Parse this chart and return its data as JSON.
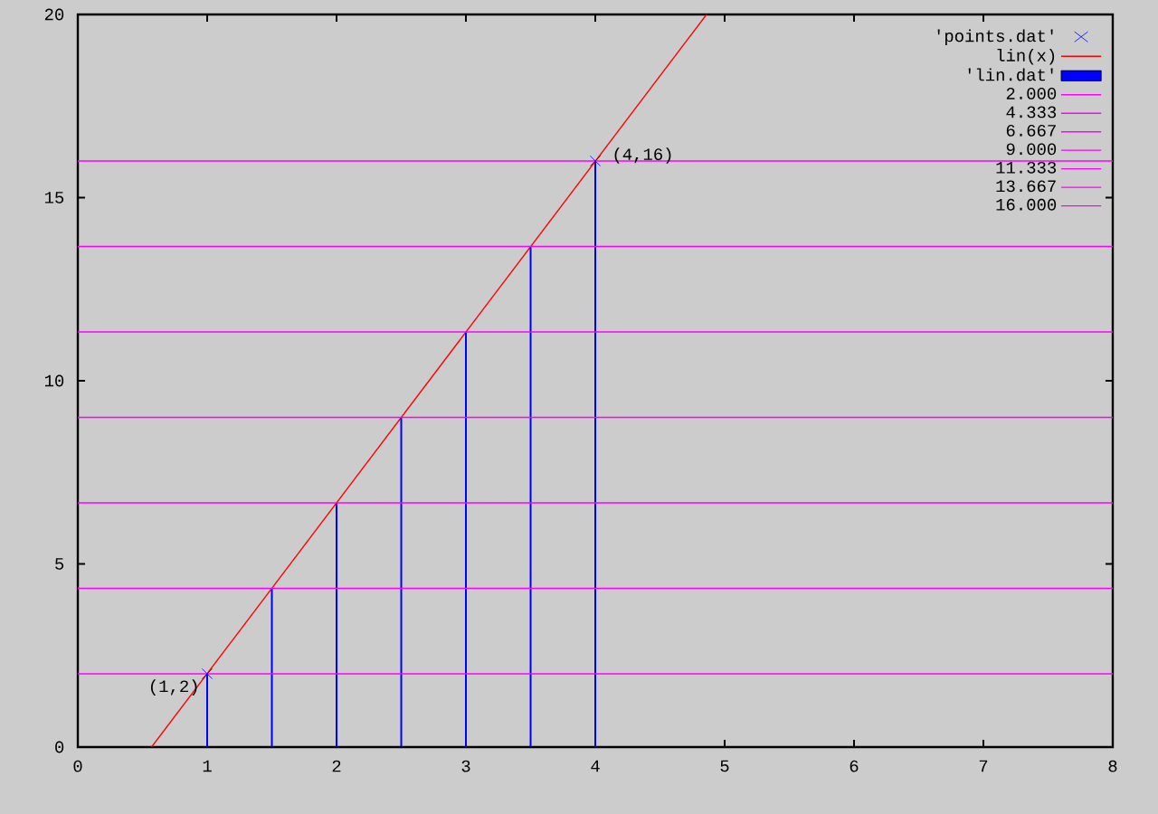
{
  "chart_data": {
    "type": "line",
    "xlim": [
      0,
      8
    ],
    "ylim": [
      0,
      20
    ],
    "xticks": [
      0,
      1,
      2,
      3,
      4,
      5,
      6,
      7,
      8
    ],
    "yticks": [
      0,
      5,
      10,
      15,
      20
    ],
    "legend": "top right",
    "grid": false,
    "series": [
      {
        "name": "'points.dat'",
        "type": "scatter",
        "marker": "cross",
        "color": "#0000ff",
        "x": [
          1,
          4
        ],
        "values": [
          2,
          16
        ]
      },
      {
        "name": "lin(x)",
        "color": "#ff0000",
        "x": [
          0.57,
          4.86
        ],
        "values": [
          0,
          20
        ]
      },
      {
        "name": "'lin.dat'",
        "type": "bar",
        "color": "#0000ff",
        "x": [
          1,
          1.5,
          2,
          2.5,
          3,
          3.5,
          4
        ],
        "values": [
          2,
          4.333,
          6.667,
          9,
          11.333,
          13.667,
          16
        ]
      },
      {
        "name": "2.000",
        "color": "#ff00ff",
        "x": [
          0,
          8
        ],
        "values": [
          2,
          2
        ]
      },
      {
        "name": "4.333",
        "color": "#ff00ff",
        "x": [
          0,
          8
        ],
        "values": [
          4.333,
          4.333
        ]
      },
      {
        "name": "6.667",
        "color": "#ff00ff",
        "x": [
          0,
          8
        ],
        "values": [
          6.667,
          6.667
        ]
      },
      {
        "name": "9.000",
        "color": "#ff00ff",
        "x": [
          0,
          8
        ],
        "values": [
          9,
          9
        ]
      },
      {
        "name": "11.333",
        "color": "#ff00ff",
        "x": [
          0,
          8
        ],
        "values": [
          11.333,
          11.333
        ]
      },
      {
        "name": "13.667",
        "color": "#ff00ff",
        "x": [
          0,
          8
        ],
        "values": [
          13.667,
          13.667
        ]
      },
      {
        "name": "16.000",
        "color": "#ff00ff",
        "x": [
          0,
          8
        ],
        "values": [
          16,
          16
        ]
      }
    ],
    "annotations": [
      {
        "text": "(1,2)",
        "x": 1,
        "y": 2
      },
      {
        "text": "(4,16)",
        "x": 4,
        "y": 16
      }
    ]
  }
}
